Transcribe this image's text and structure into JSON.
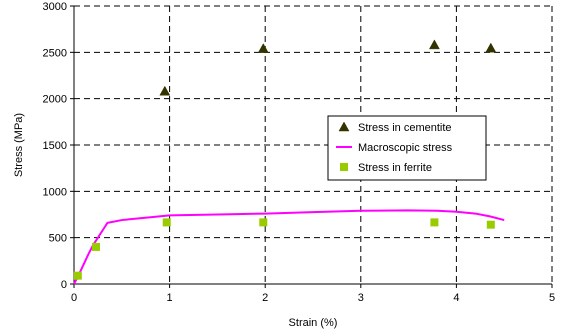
{
  "chart_data": {
    "type": "scatter",
    "xlabel": "Strain (%)",
    "ylabel": "Stress (MPa)",
    "xlim": [
      0,
      5
    ],
    "ylim": [
      0,
      3000
    ],
    "xticks": [
      "0",
      "1",
      "2",
      "3",
      "4",
      "5"
    ],
    "yticks": [
      "0",
      "500",
      "1000",
      "1500",
      "2000",
      "2500",
      "3000"
    ],
    "grid": "dashed",
    "legend_position": "right-center",
    "series": [
      {
        "name": "Stress in cementite",
        "kind": "markers",
        "marker": "triangle",
        "color": "#333300",
        "x": [
          0.95,
          1.98,
          3.77,
          4.36
        ],
        "y": [
          2080,
          2540,
          2580,
          2545
        ]
      },
      {
        "name": "Macroscopic stress",
        "kind": "line",
        "color": "#ff00ff",
        "x": [
          0.0,
          0.05,
          0.1,
          0.15,
          0.2,
          0.25,
          0.3,
          0.35,
          0.5,
          0.8,
          1.0,
          1.5,
          2.0,
          2.5,
          3.0,
          3.5,
          3.8,
          4.0,
          4.2,
          4.35,
          4.5
        ],
        "y": [
          0,
          100,
          210,
          320,
          420,
          500,
          580,
          660,
          690,
          720,
          740,
          750,
          760,
          775,
          790,
          795,
          790,
          780,
          760,
          730,
          690
        ]
      },
      {
        "name": "Stress in ferrite",
        "kind": "markers",
        "marker": "square",
        "color": "#99cc00",
        "x": [
          0.04,
          0.23,
          0.97,
          1.98,
          3.77,
          4.36
        ],
        "y": [
          90,
          400,
          665,
          665,
          665,
          640
        ]
      }
    ]
  }
}
